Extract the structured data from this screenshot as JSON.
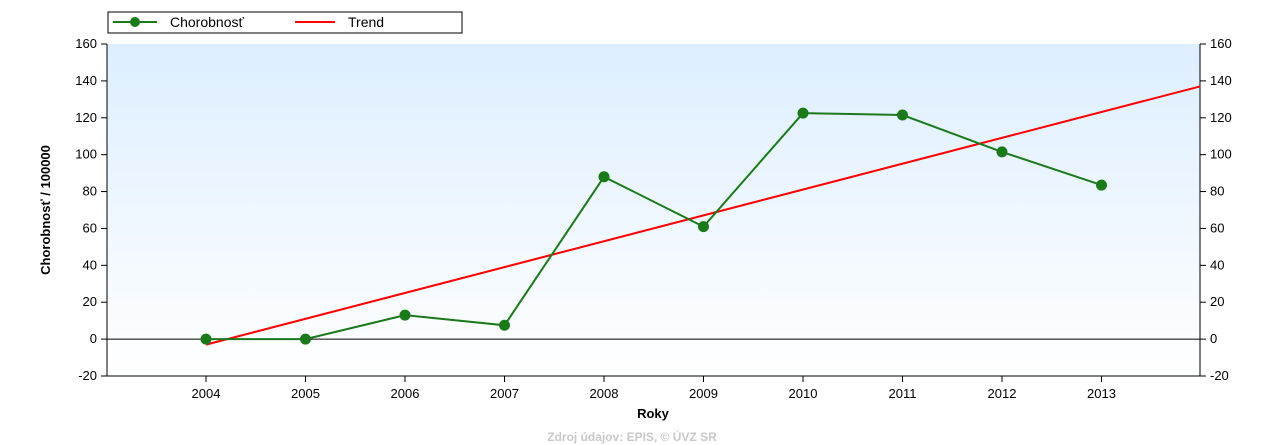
{
  "legend": {
    "items": [
      {
        "label": "Chorobnosť",
        "color": "#1a7a1a",
        "marker": "circle"
      },
      {
        "label": "Trend",
        "color": "#ff0000",
        "marker": "none"
      }
    ],
    "placement": "top-left"
  },
  "footer": {
    "source": "Zdroj údajov: EPIS, © ÚVZ SR"
  },
  "chart_data": {
    "type": "line",
    "title": "",
    "xlabel": "Roky",
    "ylabel": "Chorobnosť / 100000",
    "categories": [
      "2004",
      "2005",
      "2006",
      "2007",
      "2008",
      "2009",
      "2010",
      "2011",
      "2012",
      "2013"
    ],
    "y_ticks": [
      -20,
      0,
      20,
      40,
      60,
      80,
      100,
      120,
      140,
      160
    ],
    "ylim": [
      -20,
      160
    ],
    "grid": false,
    "background": "gradient-light-blue",
    "series": [
      {
        "name": "Chorobnosť",
        "type": "line-marker",
        "color": "#1a7a1a",
        "values": [
          0,
          0,
          13,
          7.5,
          88,
          61,
          122.5,
          121.5,
          101.5,
          83.5
        ]
      },
      {
        "name": "Trend",
        "type": "line",
        "color": "#ff0000",
        "values_at_start_end": [
          -3,
          137
        ]
      }
    ]
  }
}
